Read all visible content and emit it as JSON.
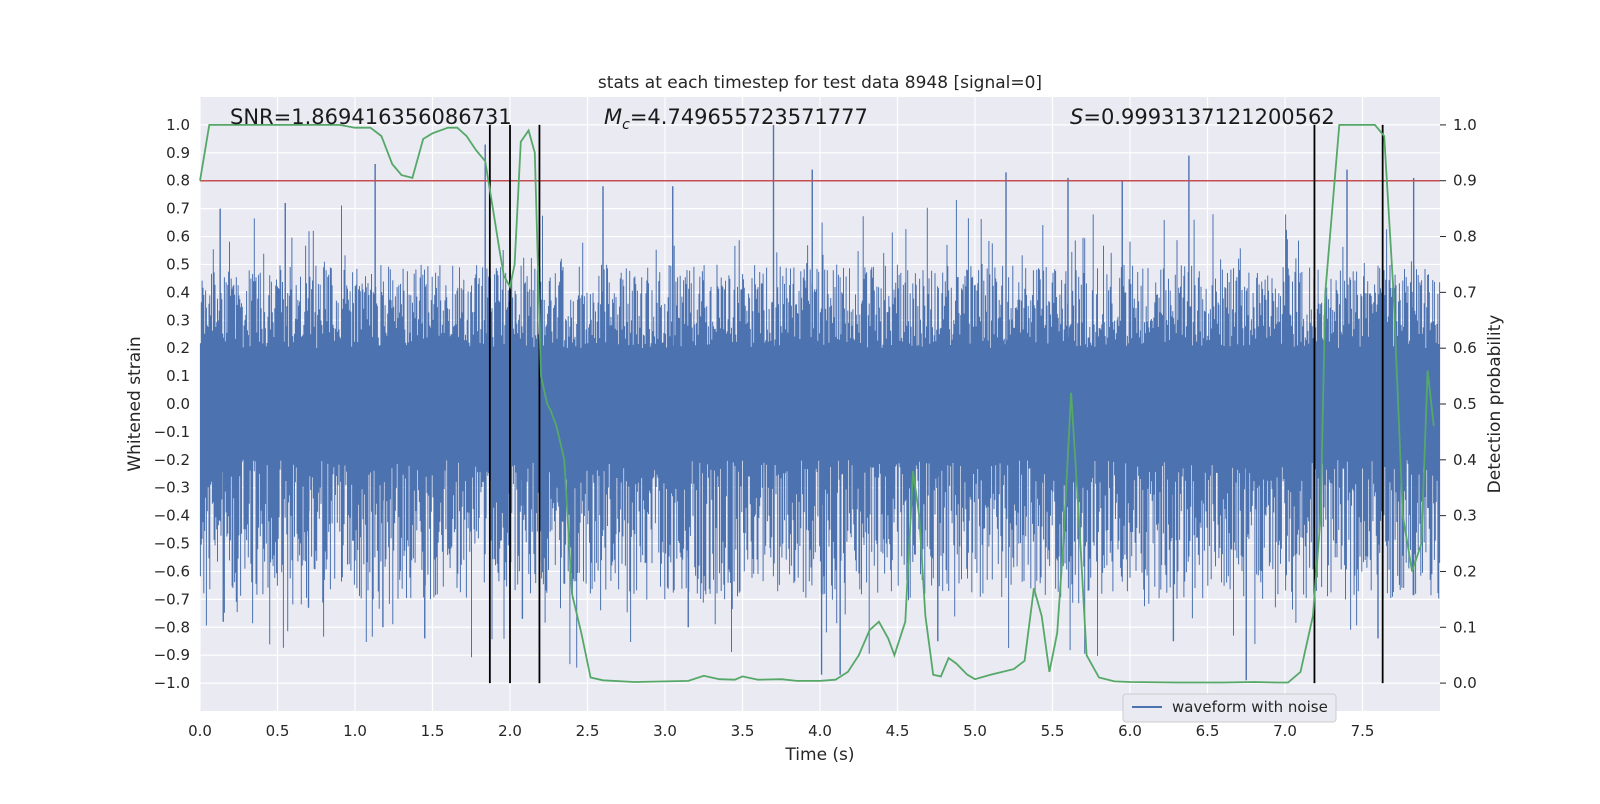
{
  "chart_data": {
    "type": "line",
    "title": "stats at each timestep for test data 8948 [signal=0]",
    "xlabel": "Time (s)",
    "ylabel_left": "Whitened strain",
    "ylabel_right": "Detection probability",
    "xlim": [
      0.0,
      8.0
    ],
    "ylim_left": [
      -1.1,
      1.1
    ],
    "ylim_right": [
      -0.05,
      1.05
    ],
    "x_ticks": [
      "0.0",
      "0.5",
      "1.0",
      "1.5",
      "2.0",
      "2.5",
      "3.0",
      "3.5",
      "4.0",
      "4.5",
      "5.0",
      "5.5",
      "6.0",
      "6.5",
      "7.0",
      "7.5"
    ],
    "x_tick_values": [
      0.0,
      0.5,
      1.0,
      1.5,
      2.0,
      2.5,
      3.0,
      3.5,
      4.0,
      4.5,
      5.0,
      5.5,
      6.0,
      6.5,
      7.0,
      7.5
    ],
    "y_left_ticks": [
      "1.0",
      "0.9",
      "0.8",
      "0.7",
      "0.6",
      "0.5",
      "0.4",
      "0.3",
      "0.2",
      "0.1",
      "0.0",
      "−0.1",
      "−0.2",
      "−0.3",
      "−0.4",
      "−0.5",
      "−0.6",
      "−0.7",
      "−0.8",
      "−0.9",
      "−1.0"
    ],
    "y_left_tick_values": [
      1.0,
      0.9,
      0.8,
      0.7,
      0.6,
      0.5,
      0.4,
      0.3,
      0.2,
      0.1,
      0.0,
      -0.1,
      -0.2,
      -0.3,
      -0.4,
      -0.5,
      -0.6,
      -0.7,
      -0.8,
      -0.9,
      -1.0
    ],
    "y_right_ticks": [
      "1.0",
      "0.9",
      "0.8",
      "0.7",
      "0.6",
      "0.5",
      "0.4",
      "0.3",
      "0.2",
      "0.1",
      "0.0"
    ],
    "y_right_tick_values": [
      1.0,
      0.9,
      0.8,
      0.7,
      0.6,
      0.5,
      0.4,
      0.3,
      0.2,
      0.1,
      0.0
    ],
    "grid": true,
    "annotations": {
      "snr": "SNR=1.869416356086731",
      "mc_symbol": "M",
      "mc_subscript": "c",
      "mc_value": "=4.749655723571777",
      "s_symbol": "S",
      "s_value": "=0.9993137121200562"
    },
    "threshold": {
      "value": 0.9,
      "axis": "right",
      "color": "#c44e52"
    },
    "vertical_lines": [
      1.87,
      2.0,
      2.19,
      7.19,
      7.63
    ],
    "legend": {
      "position": "lower-right",
      "entries": [
        "waveform with noise"
      ]
    },
    "series": [
      {
        "name": "waveform with noise",
        "axis": "left",
        "color": "#4c72b0",
        "band_core": [
          -0.2,
          0.2
        ],
        "band_typical": [
          -0.45,
          0.45
        ],
        "extreme_peaks": [
          {
            "x": 0.13,
            "v": 0.7
          },
          {
            "x": 0.15,
            "v": -0.78
          },
          {
            "x": 0.55,
            "v": 0.72
          },
          {
            "x": 0.7,
            "v": -0.73
          },
          {
            "x": 1.13,
            "v": 0.86
          },
          {
            "x": 1.18,
            "v": -0.8
          },
          {
            "x": 1.45,
            "v": -0.84
          },
          {
            "x": 1.84,
            "v": 0.93
          },
          {
            "x": 2.08,
            "v": -0.77
          },
          {
            "x": 2.6,
            "v": 0.78
          },
          {
            "x": 3.05,
            "v": 0.78
          },
          {
            "x": 3.15,
            "v": -0.8
          },
          {
            "x": 3.7,
            "v": 1.0
          },
          {
            "x": 3.95,
            "v": 0.84
          },
          {
            "x": 4.01,
            "v": -0.97
          },
          {
            "x": 4.13,
            "v": -0.97
          },
          {
            "x": 4.76,
            "v": -0.85
          },
          {
            "x": 5.2,
            "v": 0.83
          },
          {
            "x": 5.6,
            "v": 0.81
          },
          {
            "x": 5.95,
            "v": 0.8
          },
          {
            "x": 6.28,
            "v": -0.85
          },
          {
            "x": 6.38,
            "v": 0.89
          },
          {
            "x": 6.75,
            "v": -0.99
          },
          {
            "x": 7.4,
            "v": 0.84
          },
          {
            "x": 7.6,
            "v": -0.84
          },
          {
            "x": 7.83,
            "v": 0.81
          }
        ]
      },
      {
        "name": "Detection probability",
        "axis": "right",
        "color": "#55a868",
        "x": [
          0.0,
          0.06,
          0.3,
          0.6,
          0.9,
          1.0,
          1.1,
          1.17,
          1.24,
          1.3,
          1.37,
          1.44,
          1.5,
          1.6,
          1.66,
          1.72,
          1.78,
          1.84,
          1.89,
          1.93,
          1.96,
          2.0,
          2.03,
          2.07,
          2.12,
          2.16,
          2.2,
          2.24,
          2.26,
          2.3,
          2.35,
          2.4,
          2.46,
          2.52,
          2.6,
          2.8,
          3.0,
          3.15,
          3.25,
          3.35,
          3.45,
          3.5,
          3.6,
          3.75,
          3.85,
          4.0,
          4.1,
          4.18,
          4.25,
          4.32,
          4.38,
          4.44,
          4.48,
          4.55,
          4.6,
          4.64,
          4.68,
          4.73,
          4.78,
          4.83,
          4.88,
          4.95,
          5.0,
          5.1,
          5.25,
          5.32,
          5.38,
          5.43,
          5.48,
          5.53,
          5.57,
          5.62,
          5.67,
          5.72,
          5.8,
          5.9,
          6.0,
          6.3,
          6.6,
          6.8,
          6.95,
          7.02,
          7.1,
          7.18,
          7.23,
          7.26,
          7.35,
          7.45,
          7.58,
          7.64,
          7.7,
          7.76,
          7.82,
          7.88,
          7.92,
          7.96
        ],
        "values": [
          0.9,
          1.0,
          1.0,
          1.0,
          1.0,
          0.995,
          0.995,
          0.98,
          0.93,
          0.91,
          0.905,
          0.975,
          0.985,
          0.995,
          0.995,
          0.98,
          0.955,
          0.935,
          0.85,
          0.78,
          0.73,
          0.71,
          0.75,
          0.97,
          0.99,
          0.95,
          0.55,
          0.5,
          0.49,
          0.46,
          0.4,
          0.16,
          0.09,
          0.01,
          0.005,
          0.002,
          0.003,
          0.004,
          0.013,
          0.007,
          0.006,
          0.012,
          0.006,
          0.007,
          0.004,
          0.004,
          0.006,
          0.02,
          0.05,
          0.095,
          0.11,
          0.08,
          0.05,
          0.11,
          0.38,
          0.3,
          0.12,
          0.015,
          0.012,
          0.045,
          0.035,
          0.015,
          0.007,
          0.015,
          0.025,
          0.04,
          0.17,
          0.12,
          0.02,
          0.09,
          0.25,
          0.52,
          0.3,
          0.05,
          0.01,
          0.003,
          0.002,
          0.001,
          0.001,
          0.002,
          0.001,
          0.001,
          0.02,
          0.12,
          0.3,
          0.7,
          1.0,
          1.0,
          1.0,
          0.98,
          0.7,
          0.3,
          0.2,
          0.25,
          0.56,
          0.46
        ]
      }
    ]
  }
}
